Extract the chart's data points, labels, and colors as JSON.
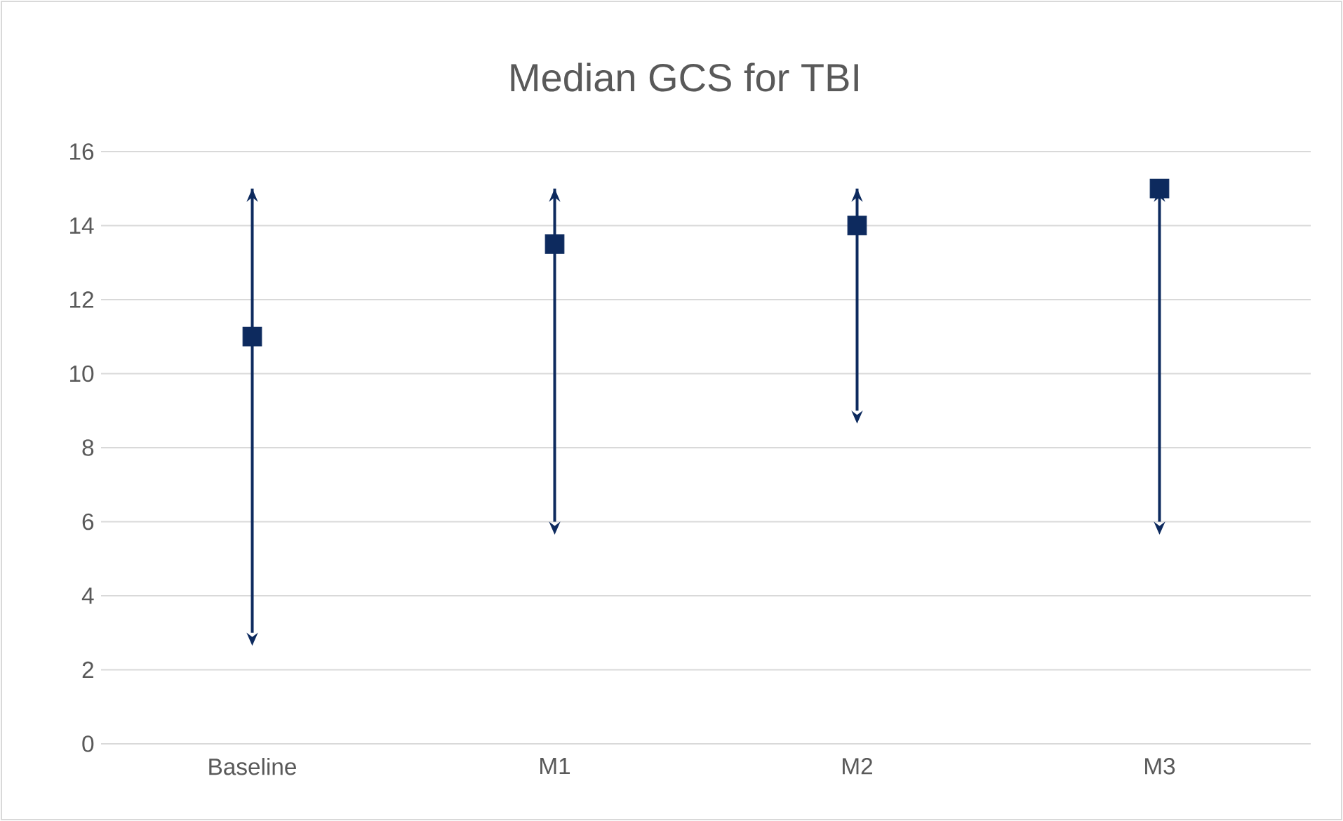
{
  "chart_data": {
    "type": "scatter",
    "title": "Median GCS for TBI",
    "categories": [
      "Baseline",
      "M1",
      "M2",
      "M3"
    ],
    "series": [
      {
        "color": "#0d2a5e",
        "values": [
          11,
          13.5,
          14,
          15
        ],
        "errors": [
          [
            3,
            15
          ],
          [
            6,
            15
          ],
          [
            9,
            15
          ],
          [
            6,
            15
          ]
        ]
      }
    ],
    "ylim": [
      0,
      16
    ],
    "yticks": [
      0,
      2,
      4,
      6,
      8,
      10,
      12,
      14,
      16
    ],
    "grid": "y",
    "marker": "square"
  }
}
